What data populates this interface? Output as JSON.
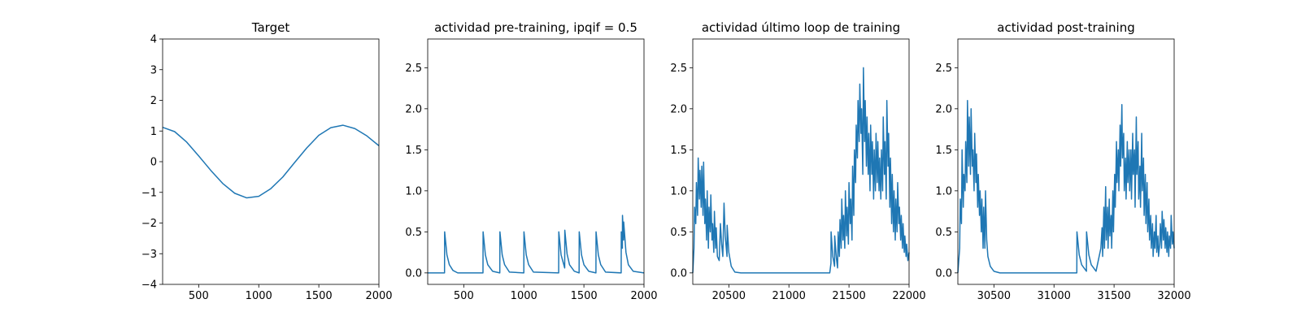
{
  "chart_data": [
    {
      "type": "line",
      "title": "Target",
      "xlabel": "",
      "ylabel": "",
      "xlim": [
        200,
        2000
      ],
      "ylim": [
        -4,
        4
      ],
      "xticks": [
        500,
        1000,
        1500,
        2000
      ],
      "yticks": [
        -4,
        -3,
        -2,
        -1,
        0,
        1,
        2,
        3,
        4
      ],
      "xtick_labels": [
        "500",
        "1000",
        "1500",
        "2000"
      ],
      "ytick_labels": [
        "−4",
        "−3",
        "−2",
        "−1",
        "0",
        "1",
        "2",
        "3",
        "4"
      ],
      "grid": false,
      "color": "#1f77b4",
      "series": [
        {
          "x": [
            200,
            300,
            400,
            500,
            600,
            700,
            800,
            900,
            1000,
            1100,
            1200,
            1300,
            1400,
            1500,
            1600,
            1700,
            1800,
            1900,
            2000
          ],
          "y": [
            1.12,
            0.98,
            0.64,
            0.19,
            -0.28,
            -0.71,
            -1.03,
            -1.18,
            -1.13,
            -0.88,
            -0.5,
            -0.02,
            0.45,
            0.86,
            1.11,
            1.19,
            1.08,
            0.84,
            0.52
          ]
        }
      ]
    },
    {
      "type": "line",
      "title": "actividad pre-training, ipqif = 0.5",
      "xlabel": "",
      "ylabel": "",
      "xlim": [
        200,
        2000
      ],
      "ylim": [
        -0.14,
        2.85
      ],
      "xticks": [
        500,
        1000,
        1500,
        2000
      ],
      "yticks": [
        0.0,
        0.5,
        1.0,
        1.5,
        2.0,
        2.5
      ],
      "xtick_labels": [
        "500",
        "1000",
        "1500",
        "2000"
      ],
      "ytick_labels": [
        "0.0",
        "0.5",
        "1.0",
        "1.5",
        "2.0",
        "2.5"
      ],
      "grid": false,
      "color": "#1f77b4",
      "series": [
        {
          "x": [
            200,
            340,
            341,
            360,
            380,
            410,
            450,
            660,
            661,
            680,
            700,
            740,
            800,
            801,
            820,
            840,
            880,
            1000,
            1001,
            1020,
            1040,
            1080,
            1290,
            1291,
            1310,
            1340,
            1341,
            1360,
            1380,
            1420,
            1460,
            1461,
            1480,
            1500,
            1540,
            1600,
            1601,
            1620,
            1640,
            1680,
            1810,
            1811,
            1820,
            1821,
            1830,
            1831,
            1850,
            1870,
            1910,
            2000
          ],
          "y": [
            0,
            0,
            0.5,
            0.22,
            0.1,
            0.03,
            0,
            0,
            0.5,
            0.22,
            0.1,
            0.02,
            0,
            0.5,
            0.22,
            0.1,
            0.01,
            0,
            0.5,
            0.22,
            0.1,
            0.01,
            0,
            0.5,
            0.22,
            0.06,
            0.52,
            0.23,
            0.1,
            0.02,
            0,
            0.5,
            0.22,
            0.1,
            0.02,
            0,
            0.5,
            0.22,
            0.1,
            0.01,
            0,
            0.5,
            0.3,
            0.7,
            0.4,
            0.62,
            0.25,
            0.1,
            0.02,
            0
          ]
        }
      ]
    },
    {
      "type": "line",
      "title": "actividad último loop de training",
      "xlabel": "",
      "ylabel": "",
      "xlim": [
        20200,
        22000
      ],
      "ylim": [
        -0.14,
        2.85
      ],
      "xticks": [
        20500,
        21000,
        21500,
        22000
      ],
      "yticks": [
        0.0,
        0.5,
        1.0,
        1.5,
        2.0,
        2.5
      ],
      "xtick_labels": [
        "20500",
        "21000",
        "21500",
        "22000"
      ],
      "ytick_labels": [
        "0.0",
        "0.5",
        "1.0",
        "1.5",
        "2.0",
        "2.5"
      ],
      "grid": false,
      "color": "#1f77b4",
      "series": [
        {
          "x": [
            20200,
            20210,
            20215,
            20225,
            20230,
            20240,
            20245,
            20255,
            20260,
            20270,
            20275,
            20285,
            20290,
            20300,
            20305,
            20315,
            20320,
            20330,
            20335,
            20345,
            20350,
            20360,
            20365,
            20375,
            20380,
            20390,
            20395,
            20405,
            20420,
            20430,
            20440,
            20450,
            20460,
            20470,
            20485,
            20486,
            20500,
            20520,
            20550,
            20600,
            21340,
            21350,
            21351,
            21365,
            21380,
            21381,
            21395,
            21405,
            21410,
            21420,
            21425,
            21435,
            21440,
            21450,
            21455,
            21465,
            21470,
            21480,
            21485,
            21495,
            21500,
            21510,
            21515,
            21525,
            21530,
            21540,
            21545,
            21555,
            21560,
            21570,
            21575,
            21585,
            21590,
            21600,
            21605,
            21615,
            21620,
            21630,
            21635,
            21645,
            21650,
            21660,
            21665,
            21675,
            21680,
            21690,
            21695,
            21705,
            21710,
            21720,
            21725,
            21735,
            21740,
            21750,
            21755,
            21765,
            21770,
            21780,
            21785,
            21795,
            21800,
            21810,
            21815,
            21825,
            21830,
            21840,
            21845,
            21855,
            21860,
            21870,
            21875,
            21885,
            21890,
            21900,
            21905,
            21915,
            21920,
            21930,
            21935,
            21945,
            21950,
            21960,
            21965,
            21975,
            21980,
            21990,
            22000
          ],
          "y": [
            0,
            0.3,
            0.8,
            0.6,
            1.1,
            0.7,
            1.4,
            0.9,
            1.25,
            0.8,
            1.3,
            0.7,
            1.35,
            0.6,
            0.9,
            0.4,
            1.0,
            0.3,
            0.8,
            0.5,
            0.95,
            0.4,
            0.6,
            0.25,
            0.75,
            0.3,
            0.55,
            0.2,
            0.15,
            0.6,
            0.35,
            0.2,
            0.85,
            0.45,
            0.2,
            0.58,
            0.25,
            0.08,
            0.01,
            0,
            0,
            0.12,
            0.5,
            0.2,
            0.08,
            0.45,
            0.18,
            0.06,
            0.5,
            0.2,
            0.65,
            0.3,
            0.9,
            0.4,
            0.7,
            0.3,
            1.0,
            0.45,
            0.8,
            0.35,
            1.1,
            0.6,
            0.9,
            0.4,
            1.3,
            0.7,
            1.5,
            1.1,
            1.8,
            1.4,
            2.1,
            1.6,
            2.3,
            1.7,
            2.0,
            1.2,
            2.5,
            1.6,
            2.1,
            1.3,
            1.9,
            1.2,
            1.7,
            1.0,
            1.8,
            1.2,
            1.6,
            0.9,
            1.5,
            1.0,
            1.7,
            1.1,
            1.6,
            1.0,
            1.4,
            0.9,
            1.5,
            1.0,
            1.9,
            1.2,
            1.6,
            0.9,
            2.1,
            1.3,
            1.7,
            0.8,
            1.4,
            0.6,
            1.2,
            0.5,
            1.0,
            0.4,
            0.9,
            0.5,
            1.1,
            0.6,
            0.8,
            0.4,
            0.7,
            0.3,
            0.6,
            0.25,
            0.45,
            0.2,
            0.35,
            0.15,
            0.25
          ]
        }
      ]
    },
    {
      "type": "line",
      "title": "actividad post-training",
      "xlabel": "",
      "ylabel": "",
      "xlim": [
        30200,
        32000
      ],
      "ylim": [
        -0.14,
        2.85
      ],
      "xticks": [
        30500,
        31000,
        31500,
        32000
      ],
      "yticks": [
        0.0,
        0.5,
        1.0,
        1.5,
        2.0,
        2.5
      ],
      "xtick_labels": [
        "30500",
        "31000",
        "31500",
        "32000"
      ],
      "ytick_labels": [
        "0.0",
        "0.5",
        "1.0",
        "1.5",
        "2.0",
        "2.5"
      ],
      "grid": false,
      "color": "#1f77b4",
      "series": [
        {
          "x": [
            30200,
            30215,
            30220,
            30230,
            30235,
            30245,
            30250,
            30260,
            30265,
            30275,
            30280,
            30290,
            30295,
            30305,
            30310,
            30320,
            30325,
            30335,
            30340,
            30350,
            30355,
            30365,
            30370,
            30380,
            30385,
            30395,
            30400,
            30410,
            30415,
            30425,
            30430,
            30440,
            30450,
            30470,
            30500,
            30550,
            31190,
            31191,
            31210,
            31230,
            31270,
            31271,
            31290,
            31310,
            31350,
            31390,
            31400,
            31405,
            31415,
            31420,
            31430,
            31435,
            31445,
            31450,
            31460,
            31465,
            31475,
            31480,
            31490,
            31495,
            31505,
            31510,
            31520,
            31525,
            31535,
            31540,
            31550,
            31555,
            31565,
            31570,
            31580,
            31585,
            31595,
            31600,
            31610,
            31615,
            31625,
            31630,
            31640,
            31645,
            31655,
            31660,
            31670,
            31675,
            31685,
            31690,
            31700,
            31705,
            31715,
            31720,
            31730,
            31735,
            31745,
            31750,
            31760,
            31765,
            31775,
            31780,
            31790,
            31795,
            31805,
            31810,
            31820,
            31825,
            31835,
            31840,
            31850,
            31855,
            31865,
            31870,
            31880,
            31885,
            31895,
            31900,
            31910,
            31915,
            31925,
            31930,
            31940,
            31945,
            31955,
            31960,
            31970,
            31975,
            31985,
            31990,
            32000
          ],
          "y": [
            0,
            0.3,
            0.9,
            0.6,
            1.5,
            0.8,
            1.2,
            1.0,
            1.6,
            1.1,
            2.1,
            1.3,
            1.9,
            1.2,
            2.0,
            1.3,
            1.5,
            1.0,
            1.7,
            1.1,
            1.45,
            0.8,
            1.2,
            0.7,
            1.0,
            0.5,
            0.9,
            0.3,
            0.8,
            0.3,
            1.0,
            0.4,
            0.2,
            0.08,
            0.02,
            0,
            0,
            0.5,
            0.22,
            0.1,
            0.02,
            0.5,
            0.22,
            0.1,
            0.02,
            0.3,
            0.55,
            0.2,
            0.8,
            0.3,
            1.05,
            0.4,
            0.8,
            0.3,
            0.9,
            0.45,
            0.7,
            0.3,
            1.0,
            0.5,
            1.2,
            0.8,
            1.6,
            1.1,
            1.5,
            1.0,
            1.8,
            1.3,
            2.05,
            1.4,
            1.7,
            1.0,
            1.4,
            0.9,
            1.6,
            1.1,
            1.5,
            1.0,
            1.5,
            0.9,
            1.7,
            1.2,
            1.5,
            0.8,
            1.9,
            1.2,
            1.6,
            0.9,
            1.3,
            0.8,
            1.7,
            1.0,
            1.4,
            0.7,
            1.2,
            0.6,
            1.1,
            0.5,
            0.9,
            0.4,
            0.7,
            0.3,
            0.6,
            0.2,
            0.5,
            0.3,
            0.7,
            0.25,
            0.45,
            0.2,
            0.35,
            0.6,
            0.3,
            0.75,
            0.4,
            0.65,
            0.3,
            0.55,
            0.25,
            0.5,
            0.2,
            0.45,
            0.3,
            0.7,
            0.35,
            0.5,
            0.3
          ]
        }
      ]
    }
  ]
}
